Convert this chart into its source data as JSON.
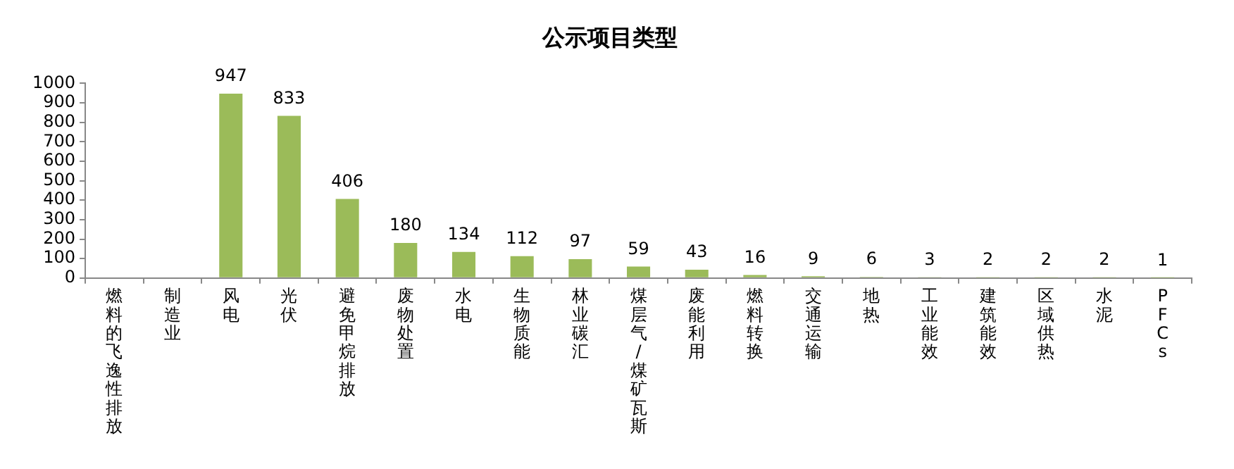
{
  "chart_data": {
    "type": "bar",
    "title": "公示项目类型",
    "categories": [
      "燃料的飞逸性排放",
      "制造业",
      "风电",
      "光伏",
      "避免甲烷排放",
      "废物处置",
      "水电",
      "生物质能",
      "林业碳汇",
      "煤层气/煤矿瓦斯",
      "废能利用",
      "燃料转换",
      "交通运输",
      "地热",
      "工业能效",
      "建筑能效",
      "区域供热",
      "水泥",
      "PFCs"
    ],
    "values": [
      0,
      0,
      947,
      833,
      406,
      180,
      134,
      112,
      97,
      59,
      43,
      16,
      9,
      6,
      3,
      2,
      2,
      2,
      1
    ],
    "value_labels": [
      null,
      null,
      "947",
      "833",
      "406",
      "180",
      "134",
      "112",
      "97",
      "59",
      "43",
      "16",
      "9",
      "6",
      "3",
      "2",
      "2",
      "2",
      "1"
    ],
    "color": "#9bbb59",
    "ylim": [
      0,
      1000
    ],
    "yticks": [
      0,
      100,
      200,
      300,
      400,
      500,
      600,
      700,
      800,
      900,
      1000
    ],
    "grid": false,
    "legend": false
  }
}
